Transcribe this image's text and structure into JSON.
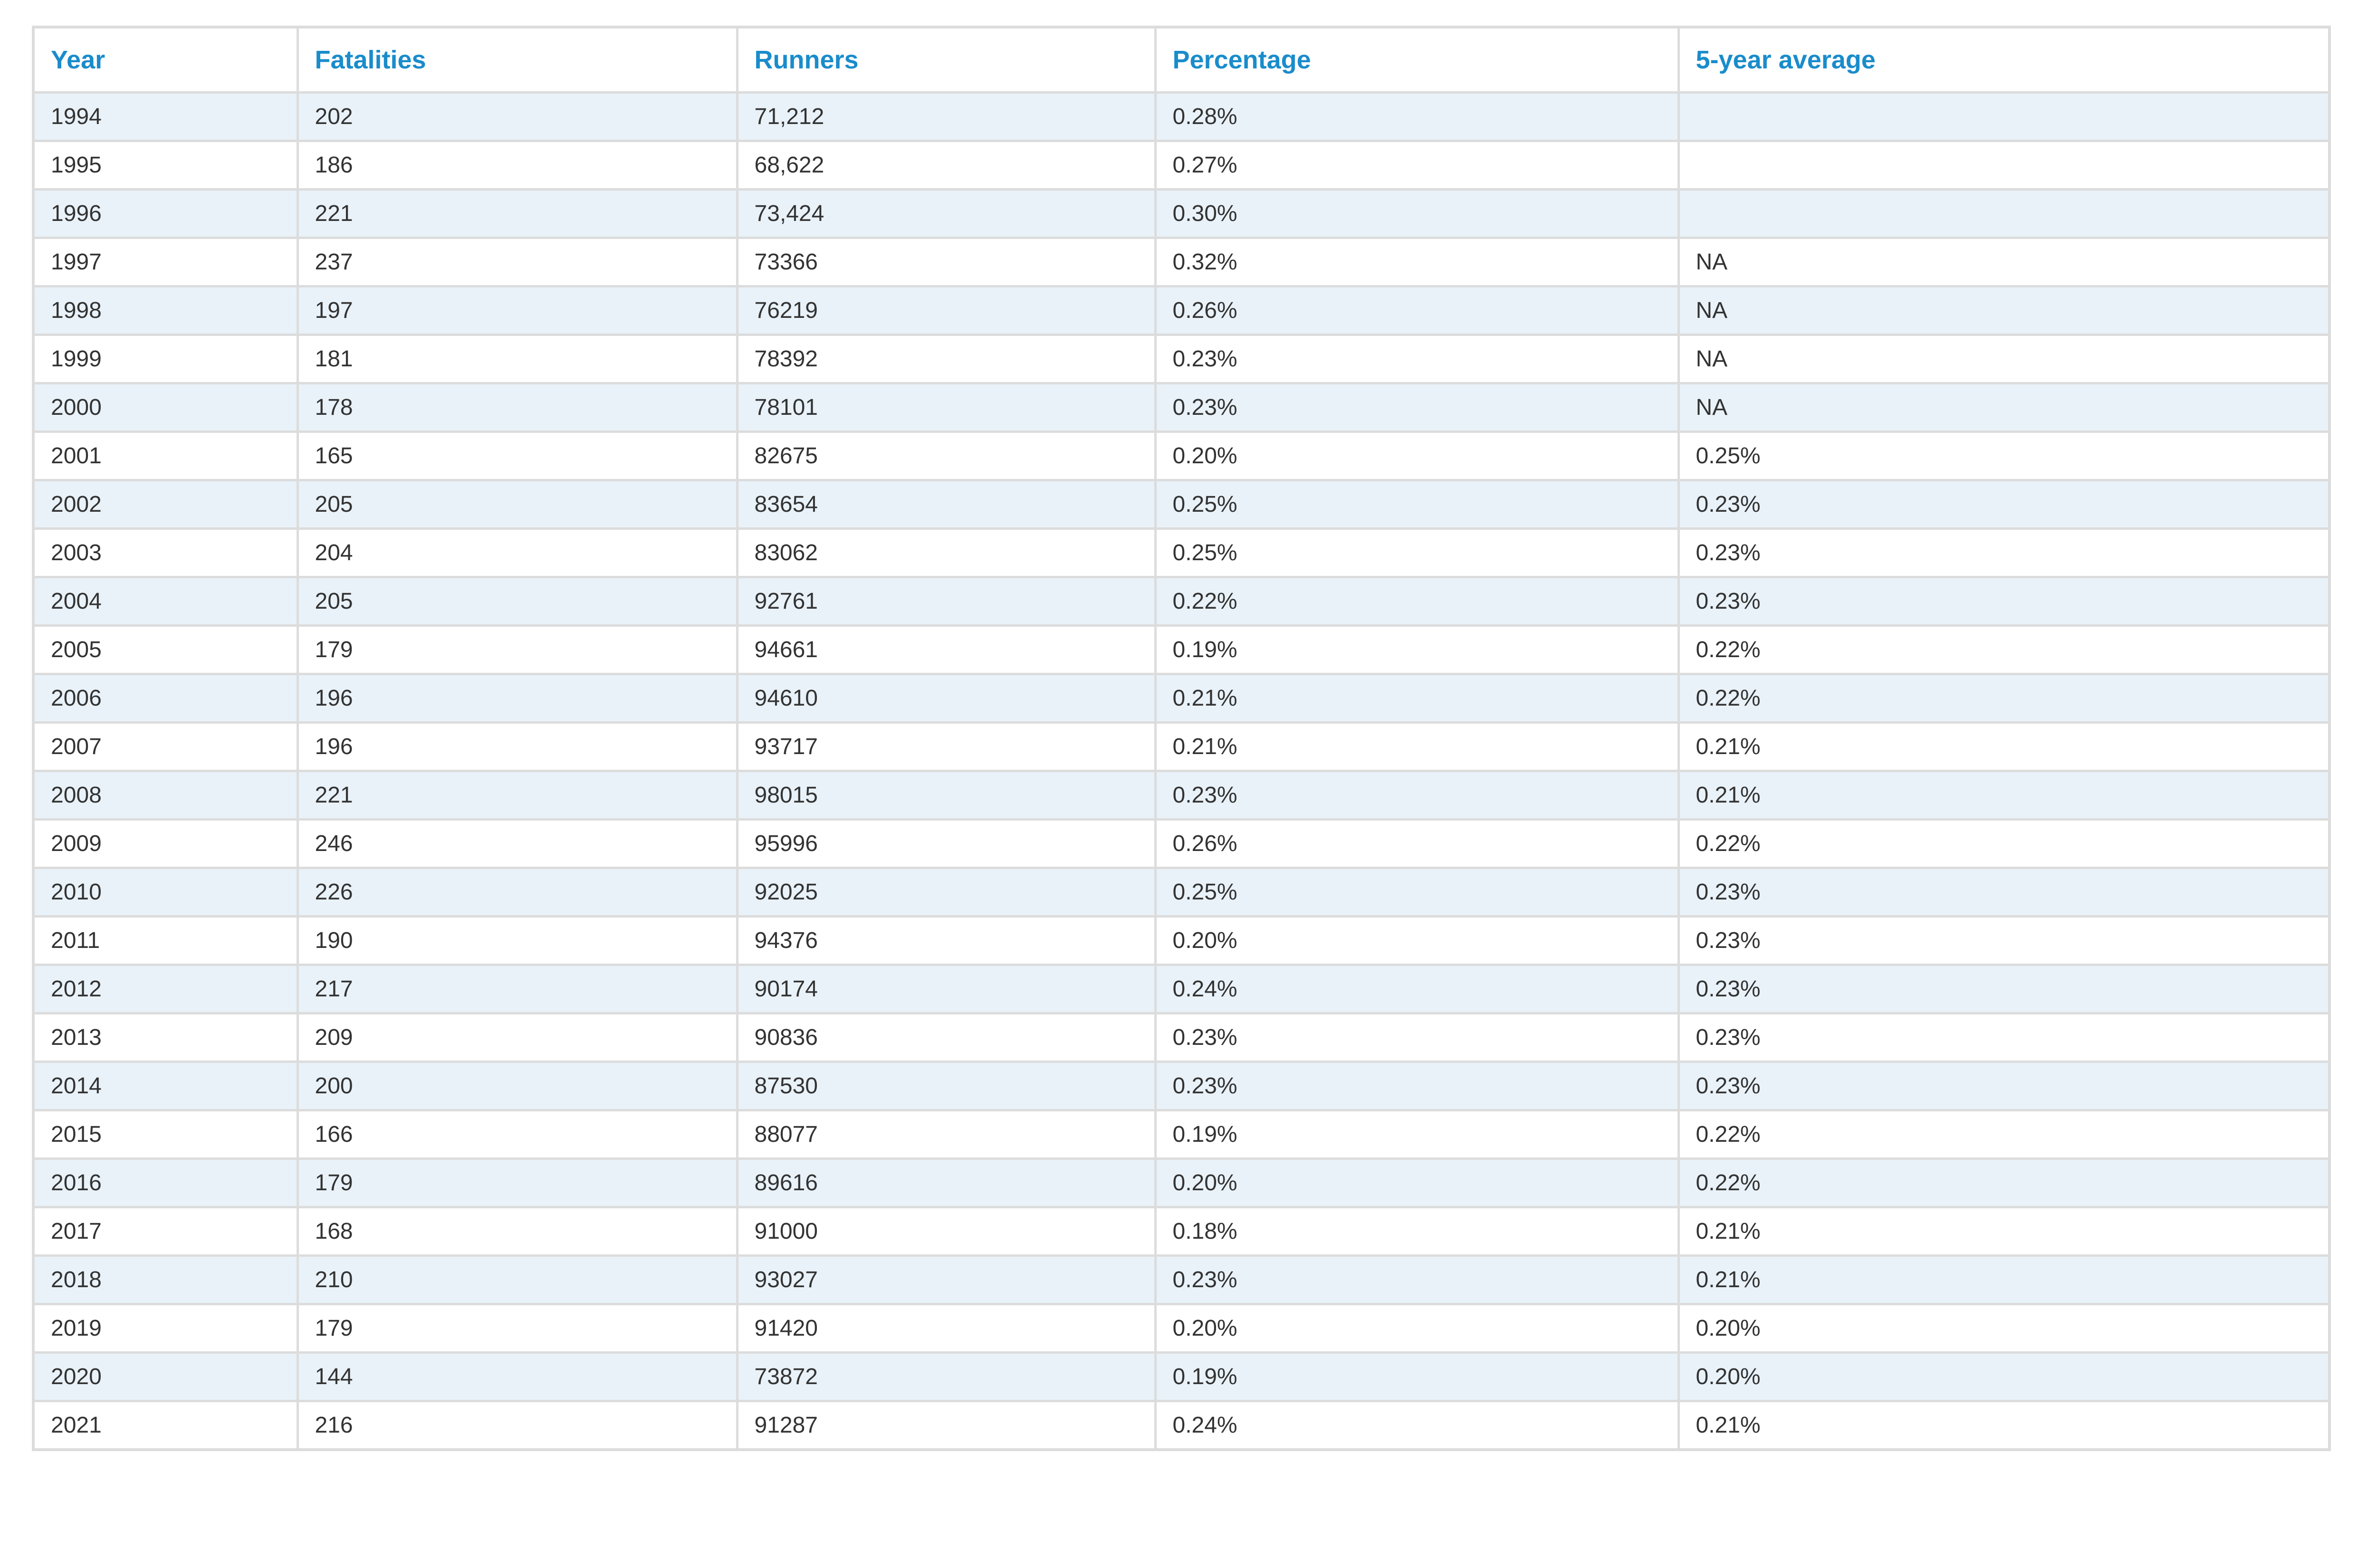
{
  "chart_data": {
    "type": "table",
    "columns": [
      "Year",
      "Fatalities",
      "Runners",
      "Percentage",
      "5-year average"
    ],
    "rows": [
      [
        "1994",
        "202",
        "71,212",
        "0.28%",
        ""
      ],
      [
        "1995",
        "186",
        "68,622",
        "0.27%",
        ""
      ],
      [
        "1996",
        "221",
        "73,424",
        "0.30%",
        ""
      ],
      [
        "1997",
        "237",
        "73366",
        "0.32%",
        "NA"
      ],
      [
        "1998",
        "197",
        "76219",
        "0.26%",
        "NA"
      ],
      [
        "1999",
        "181",
        "78392",
        "0.23%",
        "NA"
      ],
      [
        "2000",
        "178",
        "78101",
        "0.23%",
        "NA"
      ],
      [
        "2001",
        "165",
        "82675",
        "0.20%",
        "0.25%"
      ],
      [
        "2002",
        "205",
        "83654",
        "0.25%",
        "0.23%"
      ],
      [
        "2003",
        "204",
        "83062",
        "0.25%",
        "0.23%"
      ],
      [
        "2004",
        "205",
        "92761",
        "0.22%",
        "0.23%"
      ],
      [
        "2005",
        "179",
        "94661",
        "0.19%",
        "0.22%"
      ],
      [
        "2006",
        "196",
        "94610",
        "0.21%",
        "0.22%"
      ],
      [
        "2007",
        "196",
        "93717",
        "0.21%",
        "0.21%"
      ],
      [
        "2008",
        "221",
        "98015",
        "0.23%",
        "0.21%"
      ],
      [
        "2009",
        "246",
        "95996",
        "0.26%",
        "0.22%"
      ],
      [
        "2010",
        "226",
        "92025",
        "0.25%",
        "0.23%"
      ],
      [
        "2011",
        "190",
        "94376",
        "0.20%",
        "0.23%"
      ],
      [
        "2012",
        "217",
        "90174",
        "0.24%",
        "0.23%"
      ],
      [
        "2013",
        "209",
        "90836",
        "0.23%",
        "0.23%"
      ],
      [
        "2014",
        "200",
        "87530",
        "0.23%",
        "0.23%"
      ],
      [
        "2015",
        "166",
        "88077",
        "0.19%",
        "0.22%"
      ],
      [
        "2016",
        "179",
        "89616",
        "0.20%",
        "0.22%"
      ],
      [
        "2017",
        "168",
        "91000",
        "0.18%",
        "0.21%"
      ],
      [
        "2018",
        "210",
        "93027",
        "0.23%",
        "0.21%"
      ],
      [
        "2019",
        "179",
        "91420",
        "0.20%",
        "0.20%"
      ],
      [
        "2020",
        "144",
        "73872",
        "0.19%",
        "0.20%"
      ],
      [
        "2021",
        "216",
        "91287",
        "0.24%",
        "0.21%"
      ]
    ]
  },
  "colors": {
    "header_text": "#1a8ccb",
    "body_text": "#333333",
    "stripe": "#e9f2f9",
    "border": "#dcdcdc",
    "background": "#ffffff"
  }
}
